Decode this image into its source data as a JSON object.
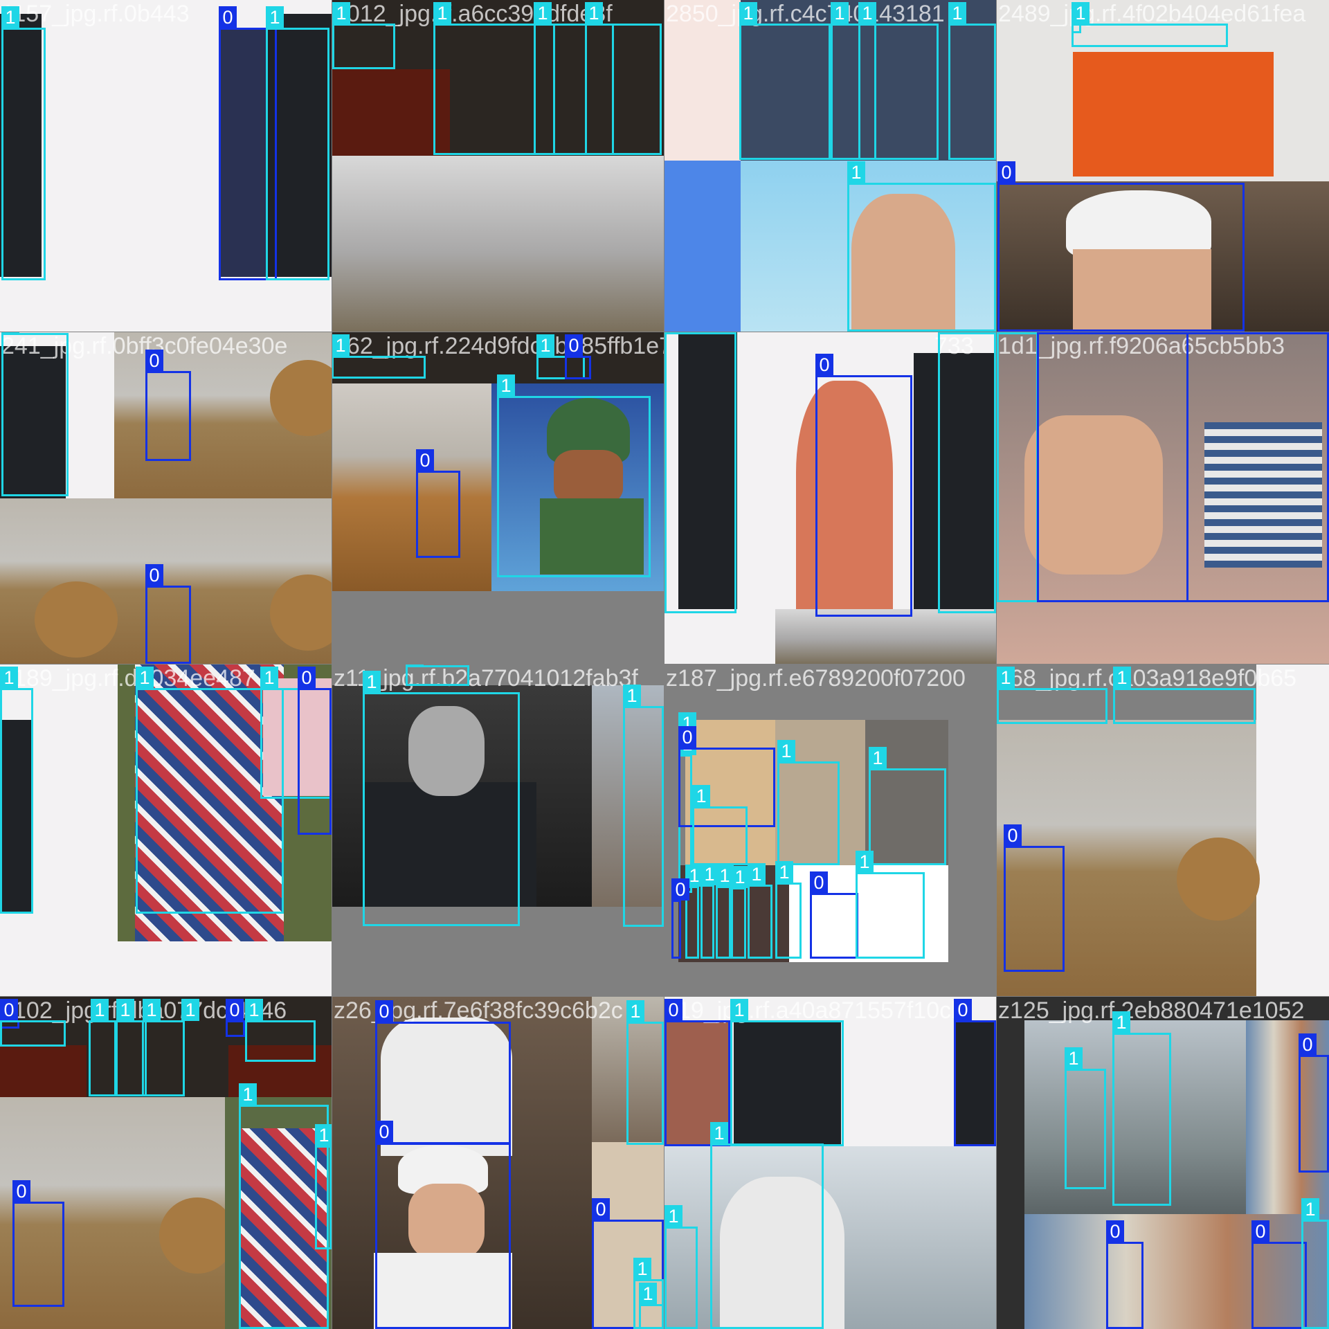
{
  "mosaic": {
    "class_colors": {
      "0": "#1432e6",
      "1": "#1fd6e6"
    },
    "tiles": [
      {
        "id": "t0",
        "filename": "1157_jpg.rf.0b443",
        "labels": [
          "1",
          "0",
          "1"
        ]
      },
      {
        "id": "t1",
        "filename": "2012_jpg.rf.a6cc39bdfde3f",
        "labels": [
          "1",
          "1",
          "1",
          "1"
        ]
      },
      {
        "id": "t2",
        "filename": "2850_jpg.rf.c4c740143181",
        "labels": [
          "1",
          "1",
          "1",
          "1",
          "1"
        ]
      },
      {
        "id": "t3",
        "filename": "2489_jpg.rf.4f02b404ed61fea",
        "labels": [
          "1",
          "1",
          "0"
        ]
      },
      {
        "id": "t4",
        "filename": "241_jpg.rf.0bff3c0fe04e30e",
        "labels": [
          "1",
          "0",
          "0"
        ]
      },
      {
        "id": "t5",
        "filename": "a62_jpg.rf.224d9fdc7b085ffb1e7",
        "labels": [
          "1",
          "1",
          "0",
          "0",
          "1"
        ]
      },
      {
        "id": "t6",
        "filename": "733",
        "labels": [
          "1",
          "1",
          "0"
        ]
      },
      {
        "id": "t7",
        "filename": "1d1_jpg.rf.f9206a65cb5bb3",
        "labels": [
          "1",
          "0",
          "0"
        ]
      },
      {
        "id": "t8",
        "filename": "z189_jpg.rf.d1034ee487",
        "labels": [
          "1",
          "1",
          "1",
          "0"
        ]
      },
      {
        "id": "t9",
        "filename": "z11_jpg.rf.b2a77041012fab3f",
        "labels": [
          "1",
          "1",
          "1"
        ]
      },
      {
        "id": "t10",
        "filename": "z187_jpg.rf.e6789200f07200",
        "labels": [
          "1",
          "1",
          "0",
          "1",
          "1",
          "1",
          "1",
          "1",
          "1",
          "1",
          "1",
          "0",
          "1",
          "0",
          "1"
        ]
      },
      {
        "id": "t11",
        "filename": "z68_jpg.rf.ca03a918e9f0b65",
        "labels": [
          "1",
          "1",
          "0"
        ]
      },
      {
        "id": "t12",
        "filename": "z102_jpg.rf.dba077dcf4046",
        "labels": [
          "0",
          "1",
          "1",
          "1",
          "1",
          "0",
          "1",
          "0",
          "1",
          "1"
        ]
      },
      {
        "id": "t13",
        "filename": "z26_jpg.rf.7e6f38fc39c6b2c",
        "labels": [
          "0",
          "1",
          "0",
          "0",
          "1",
          "1"
        ]
      },
      {
        "id": "t14",
        "filename": "z19_jpg.rf.a40a871557f10cb",
        "labels": [
          "0",
          "1",
          "0",
          "1",
          "1"
        ]
      },
      {
        "id": "t15",
        "filename": "z125_jpg.rf.2eb880471e1052",
        "labels": [
          "1",
          "1",
          "0",
          "0",
          "0",
          "1"
        ]
      }
    ]
  }
}
